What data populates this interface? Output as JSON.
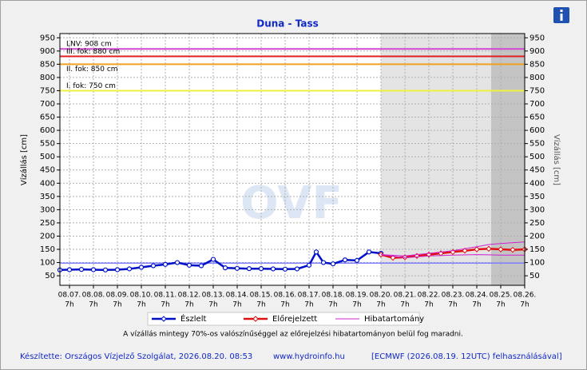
{
  "chart_data": {
    "type": "line",
    "title": "Duna - Tass",
    "y_axis_label": "Vízállás [cm]",
    "watermark": "OVF",
    "ylim": [
      14,
      966
    ],
    "yticks": [
      50,
      100,
      150,
      200,
      250,
      300,
      350,
      400,
      450,
      500,
      550,
      600,
      650,
      700,
      750,
      800,
      850,
      900,
      950
    ],
    "xlim": [
      -0.4,
      19
    ],
    "xticks": [
      {
        "value": 0,
        "label": "08.07."
      },
      {
        "value": 1,
        "label": "08.08."
      },
      {
        "value": 2,
        "label": "08.09."
      },
      {
        "value": 3,
        "label": "08.10."
      },
      {
        "value": 4,
        "label": "08.11."
      },
      {
        "value": 5,
        "label": "08.12."
      },
      {
        "value": 6,
        "label": "08.13."
      },
      {
        "value": 7,
        "label": "08.14."
      },
      {
        "value": 8,
        "label": "08.15."
      },
      {
        "value": 9,
        "label": "08.16."
      },
      {
        "value": 10,
        "label": "08.17."
      },
      {
        "value": 11,
        "label": "08.18."
      },
      {
        "value": 12,
        "label": "08.19."
      },
      {
        "value": 13,
        "label": "08.20."
      },
      {
        "value": 14,
        "label": "08.21."
      },
      {
        "value": 15,
        "label": "08.22."
      },
      {
        "value": 16,
        "label": "08.23."
      },
      {
        "value": 17,
        "label": "08.24."
      },
      {
        "value": 18,
        "label": "08.25."
      },
      {
        "value": 19,
        "label": "08.26."
      }
    ],
    "xtick_hour": "7h",
    "grid": true,
    "shaded": [
      {
        "from": 13,
        "to": 19,
        "color": "#e4e4e4"
      },
      {
        "from": 17.6,
        "to": 19,
        "color": "#c4c4c4"
      }
    ],
    "thresholds": [
      {
        "label": "LNV: 908 cm",
        "value": 908,
        "color": "#d048d0"
      },
      {
        "label": "III. fok: 880 cm",
        "value": 880,
        "color": "#e02020"
      },
      {
        "label": "II. fok: 850 cm",
        "value": 850,
        "color": "#f0a020"
      },
      {
        "label": "I. fok: 750 cm",
        "value": 750,
        "color": "#f0f040"
      }
    ],
    "reference_lines": [
      {
        "value": 98,
        "color": "#8080ff"
      }
    ],
    "series": [
      {
        "name": "Észlelt",
        "color": "#0010c8",
        "x": [
          -0.4,
          0,
          0.5,
          1,
          1.5,
          2,
          2.5,
          3,
          3.5,
          4,
          4.5,
          5,
          5.5,
          6,
          6.5,
          7,
          7.5,
          8,
          8.5,
          9,
          9.5,
          10,
          10.3,
          10.6,
          11,
          11.5,
          12,
          12.5,
          13
        ],
        "values": [
          72,
          73,
          74,
          73,
          72,
          73,
          76,
          82,
          88,
          93,
          100,
          90,
          88,
          112,
          80,
          78,
          77,
          77,
          76,
          75,
          76,
          90,
          140,
          100,
          95,
          110,
          108,
          140,
          135
        ]
      },
      {
        "name": "Előrejelzett",
        "color": "#e01010",
        "x": [
          13,
          13.5,
          14,
          14.5,
          15,
          15.5,
          16,
          16.5,
          17,
          17.5,
          18,
          18.5,
          19
        ],
        "values": [
          130,
          118,
          120,
          125,
          130,
          135,
          140,
          145,
          150,
          152,
          150,
          148,
          150
        ]
      },
      {
        "name": "Hibatartomány",
        "color": "#d020d0",
        "x": [
          13,
          14,
          15,
          16,
          17,
          17.5,
          18,
          19
        ],
        "upper": [
          130,
          125,
          135,
          145,
          160,
          168,
          172,
          178
        ],
        "lower": [
          130,
          118,
          125,
          128,
          130,
          129,
          128,
          128
        ]
      }
    ],
    "note": "A vízállás mintegy 70%-os valószínűséggel az előrejelzési hibatartományon belül fog maradni.",
    "footer": {
      "author": "Készítette: Országos Vízjelző Szolgálat, 2026.08.20. 08:53",
      "website": "www.hydroinfo.hu",
      "source": "[ECMWF (2026.08.19. 12UTC) felhasználásával]"
    }
  }
}
